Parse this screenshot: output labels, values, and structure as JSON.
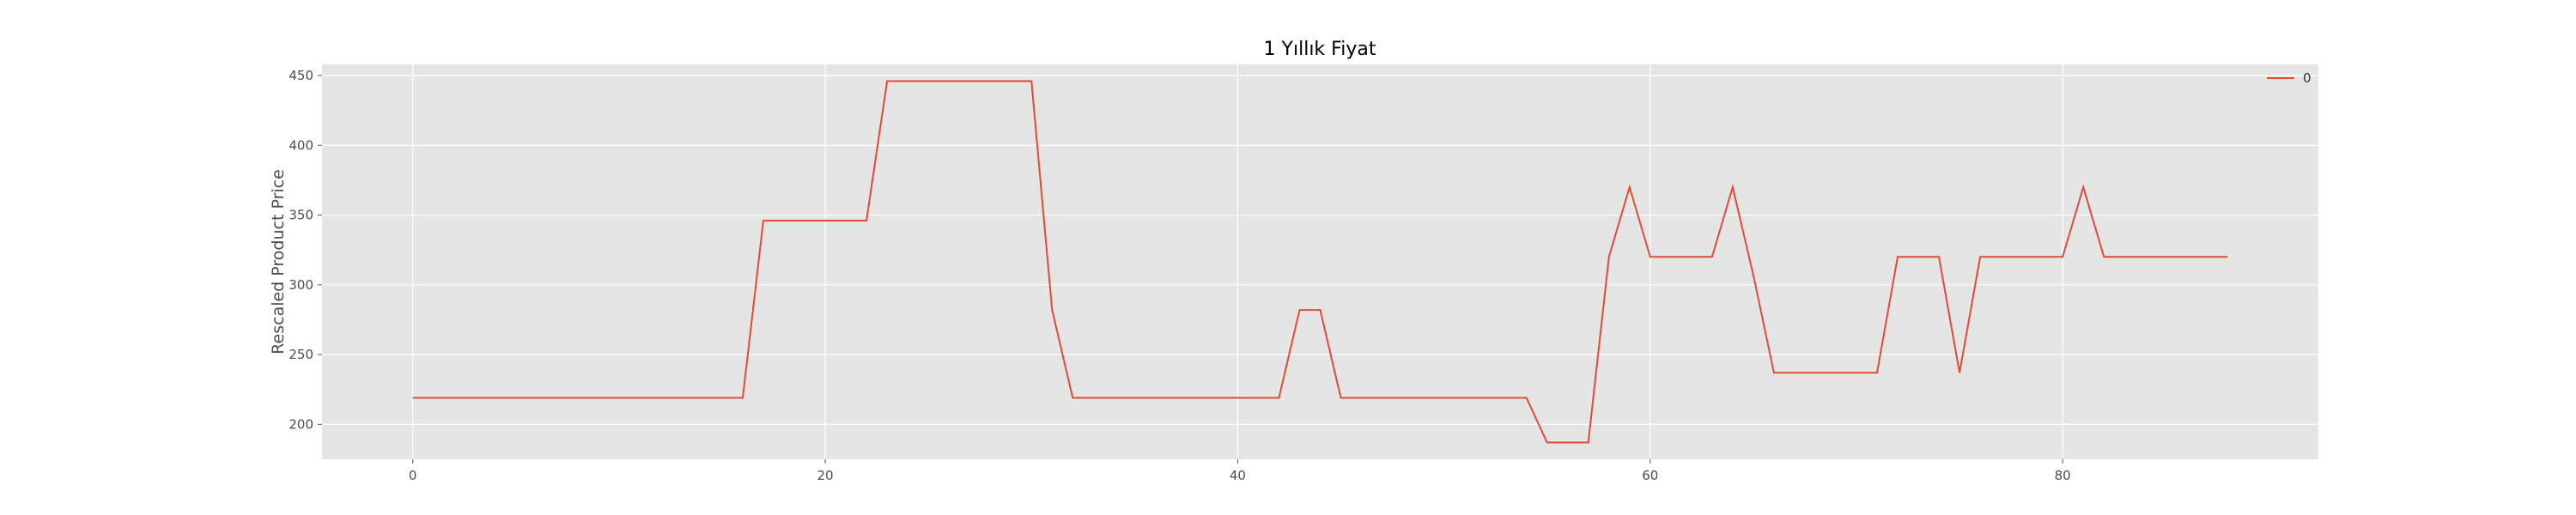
{
  "chart_data": {
    "type": "line",
    "title": "1 Yıllık Fiyat",
    "xlabel": "",
    "ylabel": "Rescaled Product Price",
    "xlim": [
      -4.4,
      92.4
    ],
    "ylim": [
      175,
      458
    ],
    "xticks": [
      0,
      20,
      40,
      60,
      80
    ],
    "yticks": [
      200,
      250,
      300,
      350,
      400,
      450
    ],
    "grid": true,
    "legend_position": "upper-right",
    "colors": {
      "background": "#e5e5e5",
      "grid": "#ffffff",
      "series": "#e24a33"
    },
    "series": [
      {
        "name": "0",
        "x": [
          0,
          16,
          17,
          22,
          23,
          30,
          31,
          32,
          42,
          43,
          44,
          45,
          54,
          55,
          57,
          58,
          59,
          60,
          63,
          64,
          65,
          66,
          71,
          72,
          74,
          75,
          76,
          80,
          81,
          82,
          88
        ],
        "y": [
          219,
          219,
          346,
          346,
          446,
          446,
          282,
          219,
          219,
          282,
          282,
          219,
          219,
          187,
          187,
          320,
          370,
          320,
          320,
          370,
          307,
          237,
          237,
          320,
          320,
          237,
          320,
          320,
          370,
          320,
          320
        ]
      }
    ]
  }
}
